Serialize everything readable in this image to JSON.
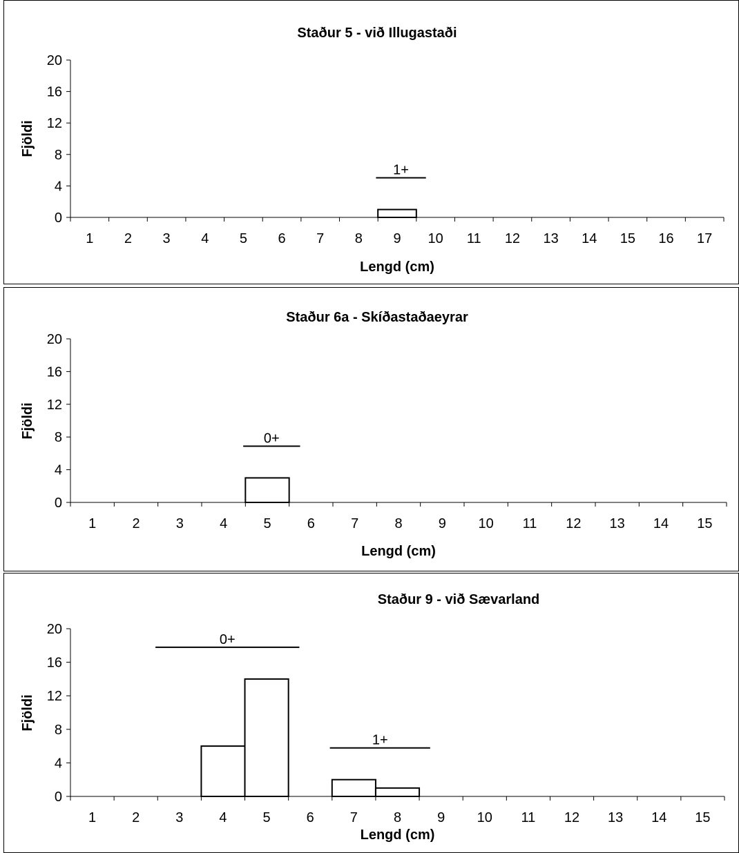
{
  "chart_data": [
    {
      "type": "bar",
      "title": "Staður 5 - við Illugastaði",
      "xlabel": "Lengd (cm)",
      "ylabel": "Fjöldi",
      "ylim": [
        0,
        20
      ],
      "yticks": [
        0,
        4,
        8,
        12,
        16,
        20
      ],
      "categories": [
        "1",
        "2",
        "3",
        "4",
        "5",
        "6",
        "7",
        "8",
        "9",
        "10",
        "11",
        "12",
        "13",
        "14",
        "15",
        "16",
        "17"
      ],
      "values": [
        0,
        0,
        0,
        0,
        0,
        0,
        0,
        0,
        1,
        0,
        0,
        0,
        0,
        0,
        0,
        0,
        0
      ],
      "age_groups": [
        {
          "label": "1+",
          "from": "9",
          "to": "9"
        }
      ],
      "grid": false,
      "legend": "none"
    },
    {
      "type": "bar",
      "title": "Staður 6a - Skíðastaðaeyrar",
      "xlabel": "Lengd (cm)",
      "ylabel": "Fjöldi",
      "ylim": [
        0,
        20
      ],
      "yticks": [
        0,
        4,
        8,
        12,
        16,
        20
      ],
      "categories": [
        "1",
        "2",
        "3",
        "4",
        "5",
        "6",
        "7",
        "8",
        "9",
        "10",
        "11",
        "12",
        "13",
        "14",
        "15"
      ],
      "values": [
        0,
        0,
        0,
        0,
        3,
        0,
        0,
        0,
        0,
        0,
        0,
        0,
        0,
        0,
        0
      ],
      "age_groups": [
        {
          "label": "0+",
          "from": "5",
          "to": "5"
        }
      ],
      "grid": false,
      "legend": "none"
    },
    {
      "type": "bar",
      "title": "Staður 9 - við Sævarland",
      "xlabel": "Lengd (cm)",
      "ylabel": "Fjöldi",
      "ylim": [
        0,
        20
      ],
      "yticks": [
        0,
        4,
        8,
        12,
        16,
        20
      ],
      "categories": [
        "1",
        "2",
        "3",
        "4",
        "5",
        "6",
        "7",
        "8",
        "9",
        "10",
        "11",
        "12",
        "13",
        "14",
        "15"
      ],
      "values": [
        0,
        0,
        0,
        6,
        14,
        0,
        2,
        1,
        0,
        0,
        0,
        0,
        0,
        0,
        0
      ],
      "age_groups": [
        {
          "label": "0+",
          "from": "3",
          "to": "5"
        },
        {
          "label": "1+",
          "from": "7",
          "to": "8"
        }
      ],
      "grid": false,
      "legend": "none"
    }
  ]
}
